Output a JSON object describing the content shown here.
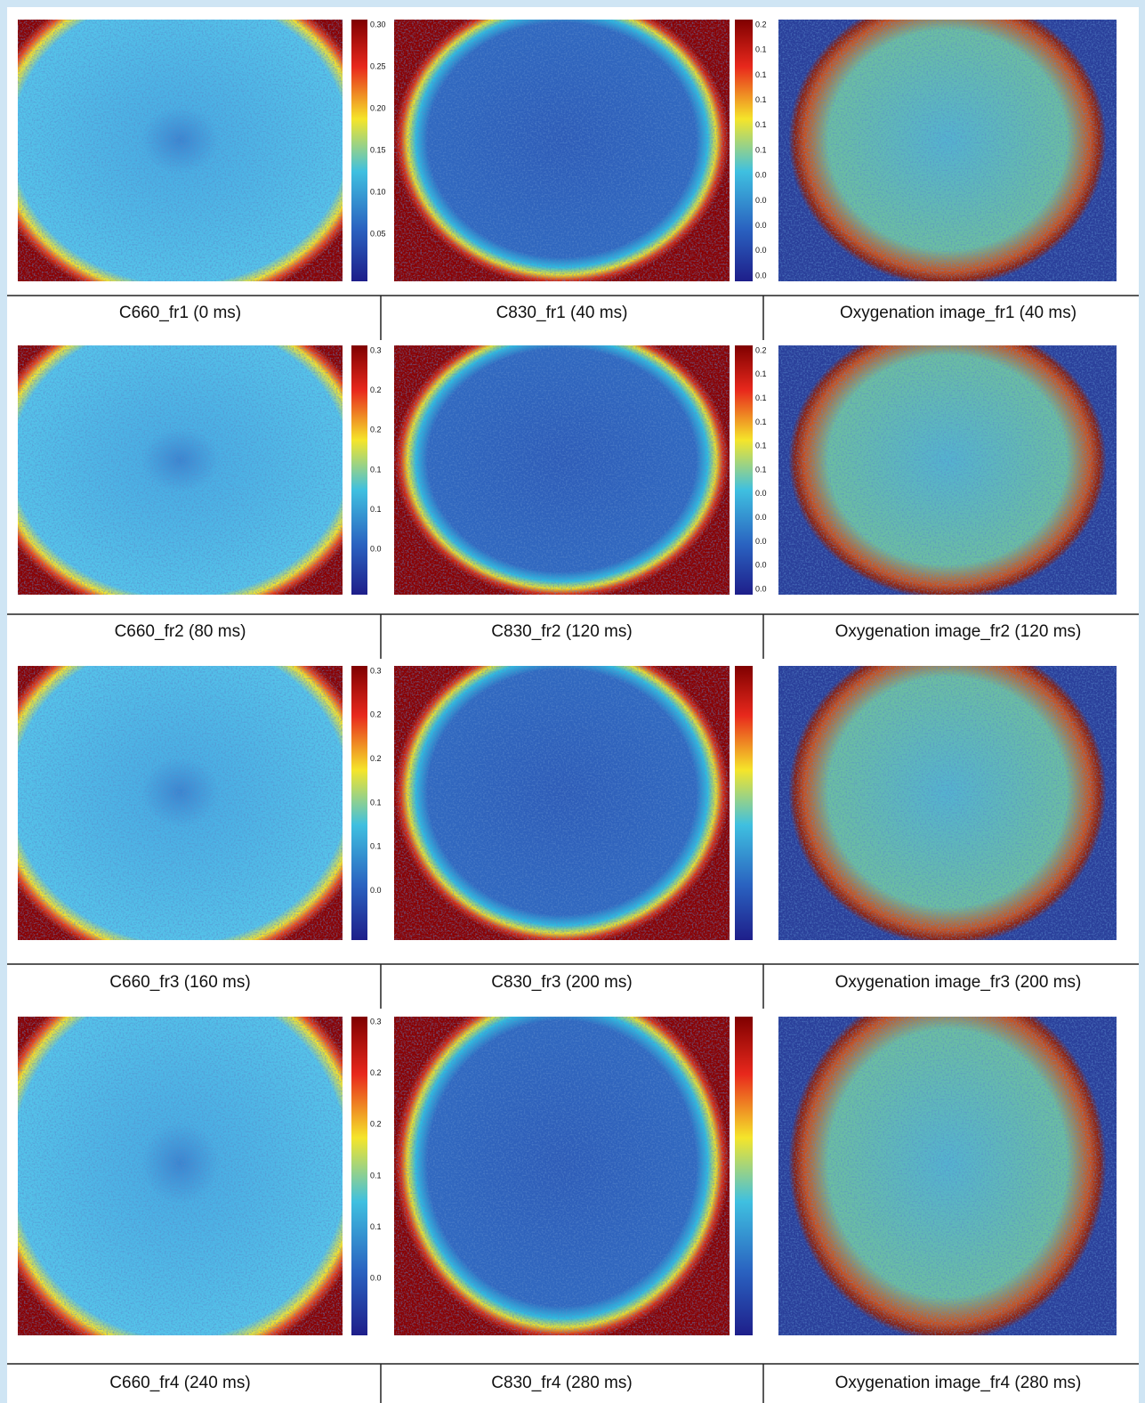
{
  "rows": [
    {
      "captions": [
        "C660_fr1 (0 ms)",
        "C830_fr1 (40 ms)",
        "Oxygenation image_fr1 (40 ms)"
      ],
      "colorbars": [
        [
          "0.30",
          "0.25",
          "0.20",
          "0.15",
          "0.10",
          "0.05"
        ],
        [
          "0.2",
          "0.1",
          "0.1",
          "0.1",
          "0.1",
          "0.1",
          "0.0",
          "0.0",
          "0.0",
          "0.0",
          "0.0"
        ]
      ]
    },
    {
      "captions": [
        "C660_fr2 (80 ms)",
        "C830_fr2 (120 ms)",
        "Oxygenation image_fr2 (120 ms)"
      ],
      "colorbars": [
        [
          "0.3",
          "0.2",
          "0.2",
          "0.1",
          "0.1",
          "0.0"
        ],
        [
          "0.2",
          "0.1",
          "0.1",
          "0.1",
          "0.1",
          "0.1",
          "0.0",
          "0.0",
          "0.0",
          "0.0",
          "0.0"
        ]
      ]
    },
    {
      "captions": [
        "C660_fr3 (160 ms)",
        "C830_fr3 (200 ms)",
        "Oxygenation image_fr3 (200 ms)"
      ],
      "colorbars": [
        [
          "0.3",
          "0.2",
          "0.2",
          "0.1",
          "0.1",
          "0.0"
        ],
        []
      ]
    },
    {
      "captions": [
        "C660_fr4 (240 ms)",
        "C830_fr4 (280 ms)",
        "Oxygenation image_fr4 (280 ms)"
      ],
      "colorbars": [
        [
          "0.3",
          "0.2",
          "0.2",
          "0.1",
          "0.1",
          "0.0"
        ],
        []
      ]
    }
  ]
}
